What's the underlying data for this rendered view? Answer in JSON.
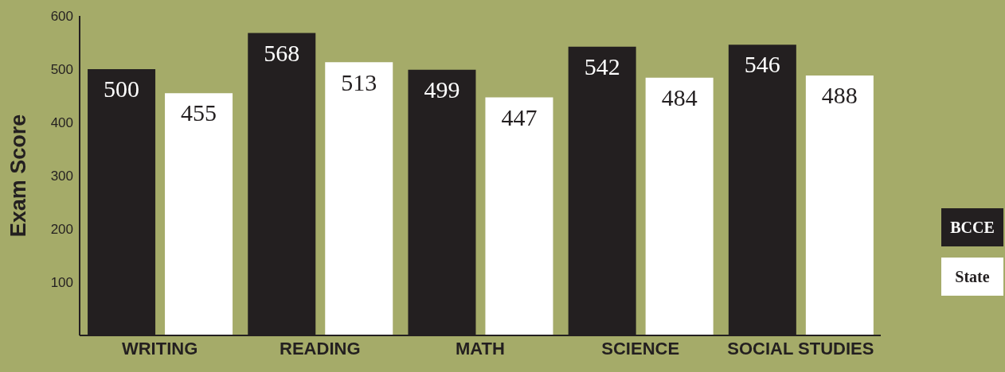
{
  "chart_data": {
    "type": "bar",
    "ylabel": "Exam Score",
    "categories": [
      "WRITING",
      "READING",
      "MATH",
      "SCIENCE",
      "SOCIAL STUDIES"
    ],
    "series": [
      {
        "name": "BCCE",
        "color": "#231f20",
        "values": [
          500,
          568,
          499,
          542,
          546
        ]
      },
      {
        "name": "State",
        "color": "#ffffff",
        "values": [
          455,
          513,
          447,
          484,
          488
        ]
      }
    ],
    "ylim": [
      0,
      600
    ],
    "yticks": [
      100,
      200,
      300,
      400,
      500,
      600
    ],
    "grid": false,
    "legend": "right",
    "data_labels": true
  }
}
